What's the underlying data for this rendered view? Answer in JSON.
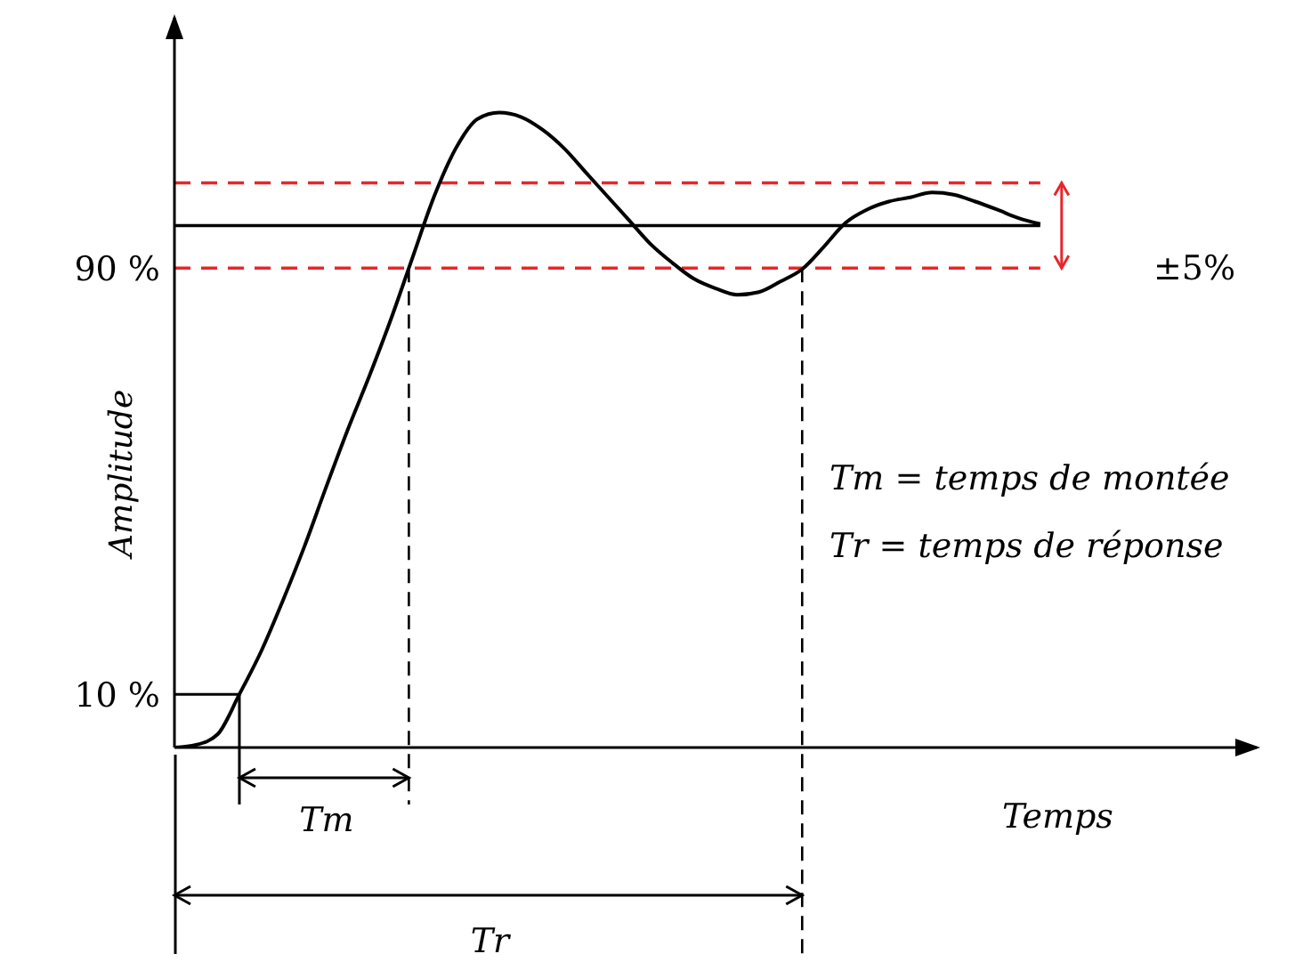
{
  "chart_data": {
    "type": "line",
    "xlabel": "Temps",
    "ylabel": "Amplitude",
    "categories": [
      null,
      null,
      null,
      null,
      null,
      null,
      null,
      null,
      null,
      null,
      null,
      null,
      null,
      null,
      null,
      null,
      null,
      null,
      null,
      null,
      null,
      null,
      null,
      null,
      null,
      null,
      null,
      null,
      null,
      null,
      null,
      null,
      null,
      null,
      null,
      null,
      null,
      null,
      null,
      null,
      null,
      null,
      null,
      null,
      null,
      null,
      null,
      null,
      null,
      null,
      null
    ],
    "values": [
      0,
      0.5,
      2.5,
      10,
      18,
      27.5,
      37.7,
      48.8,
      59.6,
      69.7,
      80.4,
      92,
      103.5,
      112.5,
      118,
      119.2,
      118.4,
      116,
      112.5,
      108,
      103.5,
      99,
      94.5,
      91,
      88,
      86.2,
      85,
      85.5,
      87.5,
      89.8,
      94,
      98.5,
      101,
      102.5,
      103.3,
      104.2,
      103.8,
      102.5,
      101,
      99.4,
      98.3,
      null,
      null,
      null,
      null,
      null,
      null,
      null,
      null,
      null,
      null
    ],
    "color": "#000000",
    "ylim": [
      0,
      137
    ],
    "yticks": [
      {
        "value": 10,
        "label": "10 %"
      },
      {
        "value": 90,
        "label": "90 %"
      }
    ],
    "tick_labels": "y",
    "grid": false,
    "legend": false,
    "marker": "none",
    "line_style": "solid",
    "ref_lines": [
      {
        "axis": "y",
        "value": 106,
        "color": "#e8262a",
        "line_style": "dashed"
      },
      {
        "axis": "y",
        "value": 98,
        "color": "#000000",
        "line_style": "solid"
      },
      {
        "axis": "y",
        "value": 90,
        "color": "#e8262a",
        "line_style": "dashed"
      }
    ],
    "annotations": [
      "Tm",
      "Tr",
      "±5%",
      "Tm = temps de montée",
      "Tr = temps de réponse"
    ]
  }
}
